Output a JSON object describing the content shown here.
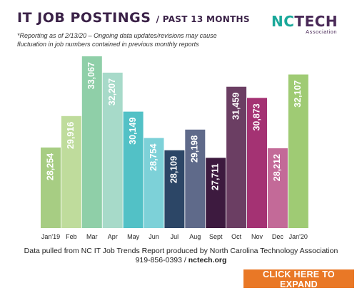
{
  "header": {
    "title_main": "IT JOB POSTINGS",
    "title_sub": "/ PAST 13 MONTHS",
    "note": "*Reporting as of 2/13/20 – Ongoing data updates/revisions may cause fluctuation in job numbers contained in previous monthly reports"
  },
  "logo": {
    "nc": "NC",
    "tech": "TECH",
    "association": "Association"
  },
  "chart_data": {
    "type": "bar",
    "categories": [
      "Jan'19",
      "Feb",
      "Mar",
      "Apr",
      "May",
      "Jun",
      "Jul",
      "Aug",
      "Sept",
      "Oct",
      "Nov",
      "Dec",
      "Jan'20"
    ],
    "values": [
      28254,
      29916,
      33067,
      32207,
      30149,
      28754,
      28109,
      29198,
      27711,
      31459,
      30873,
      28212,
      32107
    ],
    "value_labels": [
      "28,254",
      "29,916",
      "33,067",
      "32,207",
      "30,149",
      "28,754",
      "28,109",
      "29,198",
      "27,711",
      "31,459",
      "30,873",
      "28,212",
      "32,107"
    ],
    "colors": [
      "#a7cd83",
      "#bfdc9c",
      "#8fcfa8",
      "#a7dac9",
      "#52c1c6",
      "#7dd1d8",
      "#2c4666",
      "#5f6a8a",
      "#3d1a3f",
      "#6b3e63",
      "#a43273",
      "#c36a98",
      "#9fcb74"
    ],
    "title": "IT JOB POSTINGS / PAST 13 MONTHS",
    "xlabel": "",
    "ylabel": "",
    "ylim": [
      0,
      33067
    ],
    "grid": false,
    "legend": "none"
  },
  "footer": {
    "source": "Data pulled from NC IT Job Trends Report produced by North Carolina Technology Association",
    "phone": "919-856-0393",
    "separator": "/",
    "website": "nctech.org"
  },
  "cta": {
    "label": "CLICK HERE TO EXPAND"
  }
}
